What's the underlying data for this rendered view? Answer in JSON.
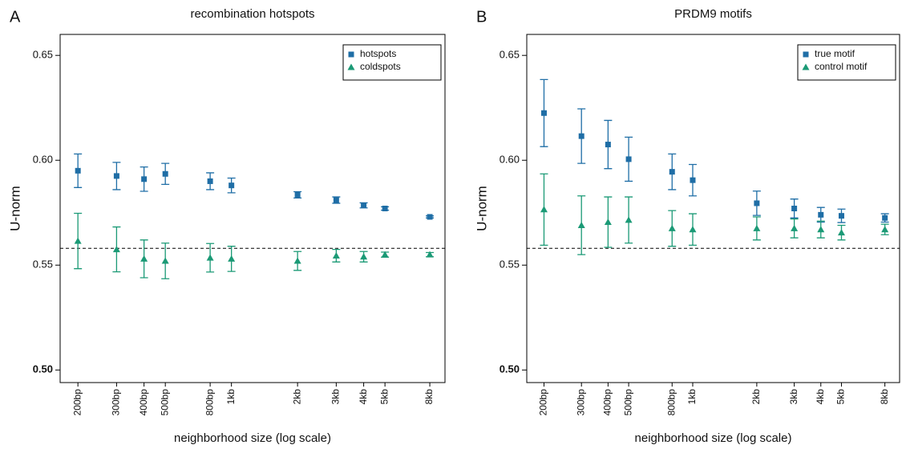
{
  "chart_data": [
    {
      "type": "scatter",
      "panel_label": "A",
      "title": "recombination hotspots",
      "x_label": "neighborhood size (log scale)",
      "y_label": "U-norm",
      "xscale": "log",
      "xlim": [
        166,
        9380
      ],
      "ylim": [
        0.494,
        0.66
      ],
      "xticks": [
        {
          "value": 200,
          "label": "200bp"
        },
        {
          "value": 300,
          "label": "300bp"
        },
        {
          "value": 400,
          "label": "400bp"
        },
        {
          "value": 500,
          "label": "500bp"
        },
        {
          "value": 800,
          "label": "800bp"
        },
        {
          "value": 1000,
          "label": "1kb"
        },
        {
          "value": 2000,
          "label": "2kb"
        },
        {
          "value": 3000,
          "label": "3kb"
        },
        {
          "value": 4000,
          "label": "4kb"
        },
        {
          "value": 5000,
          "label": "5kb"
        },
        {
          "value": 8000,
          "label": "8kb"
        }
      ],
      "yticks": [
        {
          "value": 0.5,
          "label": "0.50"
        },
        {
          "value": 0.55,
          "label": "0.55"
        },
        {
          "value": 0.6,
          "label": "0.60"
        },
        {
          "value": 0.65,
          "label": "0.65"
        }
      ],
      "reference_line": 0.558,
      "legend": "top-right",
      "x": [
        200,
        300,
        400,
        500,
        800,
        1000,
        2000,
        3000,
        4000,
        5000,
        8000
      ],
      "series": [
        {
          "name": "hotspots",
          "color": "#1f6ea6",
          "marker": "square",
          "values": [
            0.595,
            0.5925,
            0.591,
            0.5935,
            0.59,
            0.588,
            0.5835,
            0.581,
            0.5785,
            0.577,
            0.573
          ],
          "errors": [
            0.008,
            0.0065,
            0.0058,
            0.005,
            0.004,
            0.0035,
            0.0015,
            0.0015,
            0.0012,
            0.0008,
            0.0005
          ]
        },
        {
          "name": "coldspots",
          "color": "#1b9a76",
          "marker": "triangle",
          "values": [
            0.5615,
            0.5575,
            0.553,
            0.552,
            0.5535,
            0.553,
            0.552,
            0.5545,
            0.554,
            0.555,
            0.555
          ],
          "errors": [
            0.0132,
            0.0107,
            0.009,
            0.0085,
            0.0068,
            0.006,
            0.0045,
            0.003,
            0.0025,
            0.0012,
            0.001
          ]
        }
      ]
    },
    {
      "type": "scatter",
      "panel_label": "B",
      "title": "PRDM9 motifs",
      "x_label": "neighborhood size (log scale)",
      "y_label": "U-norm",
      "xscale": "log",
      "xlim": [
        166,
        9380
      ],
      "ylim": [
        0.494,
        0.66
      ],
      "xticks": [
        {
          "value": 200,
          "label": "200bp"
        },
        {
          "value": 300,
          "label": "300bp"
        },
        {
          "value": 400,
          "label": "400bp"
        },
        {
          "value": 500,
          "label": "500bp"
        },
        {
          "value": 800,
          "label": "800bp"
        },
        {
          "value": 1000,
          "label": "1kb"
        },
        {
          "value": 2000,
          "label": "2kb"
        },
        {
          "value": 3000,
          "label": "3kb"
        },
        {
          "value": 4000,
          "label": "4kb"
        },
        {
          "value": 5000,
          "label": "5kb"
        },
        {
          "value": 8000,
          "label": "8kb"
        }
      ],
      "yticks": [
        {
          "value": 0.5,
          "label": "0.50"
        },
        {
          "value": 0.55,
          "label": "0.55"
        },
        {
          "value": 0.6,
          "label": "0.60"
        },
        {
          "value": 0.65,
          "label": "0.65"
        }
      ],
      "reference_line": 0.558,
      "legend": "top-right",
      "x": [
        200,
        300,
        400,
        500,
        800,
        1000,
        2000,
        3000,
        4000,
        5000,
        8000
      ],
      "series": [
        {
          "name": "true motif",
          "color": "#1f6ea6",
          "marker": "square",
          "values": [
            0.6225,
            0.6115,
            0.6075,
            0.6005,
            0.5945,
            0.5905,
            0.5795,
            0.577,
            0.574,
            0.5735,
            0.5725
          ],
          "errors": [
            0.016,
            0.013,
            0.0115,
            0.0105,
            0.0085,
            0.0075,
            0.0058,
            0.0045,
            0.0035,
            0.0032,
            0.002
          ]
        },
        {
          "name": "control motif",
          "color": "#1b9a76",
          "marker": "triangle",
          "values": [
            0.5765,
            0.569,
            0.5705,
            0.5715,
            0.5675,
            0.567,
            0.5675,
            0.5675,
            0.567,
            0.5655,
            0.567
          ],
          "errors": [
            0.017,
            0.014,
            0.012,
            0.011,
            0.0085,
            0.0075,
            0.0055,
            0.0045,
            0.004,
            0.0035,
            0.0025
          ]
        }
      ]
    }
  ]
}
